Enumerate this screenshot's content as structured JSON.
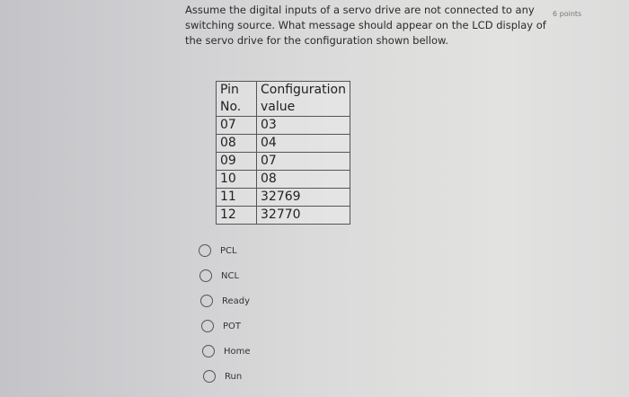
{
  "question": {
    "text": "Assume the digital inputs of a servo drive are not connected to any switching source. What message should appear on the LCD display of the servo drive for the configuration shown bellow.",
    "points": "6 points"
  },
  "table": {
    "headers": [
      "Pin No.",
      "Configuration value"
    ],
    "rows": [
      [
        "07",
        "03"
      ],
      [
        "08",
        "04"
      ],
      [
        "09",
        "07"
      ],
      [
        "10",
        "08"
      ],
      [
        "11",
        "32769"
      ],
      [
        "12",
        "32770"
      ]
    ]
  },
  "options": [
    "PCL",
    "NCL",
    "Ready",
    "POT",
    "Home",
    "Run"
  ]
}
